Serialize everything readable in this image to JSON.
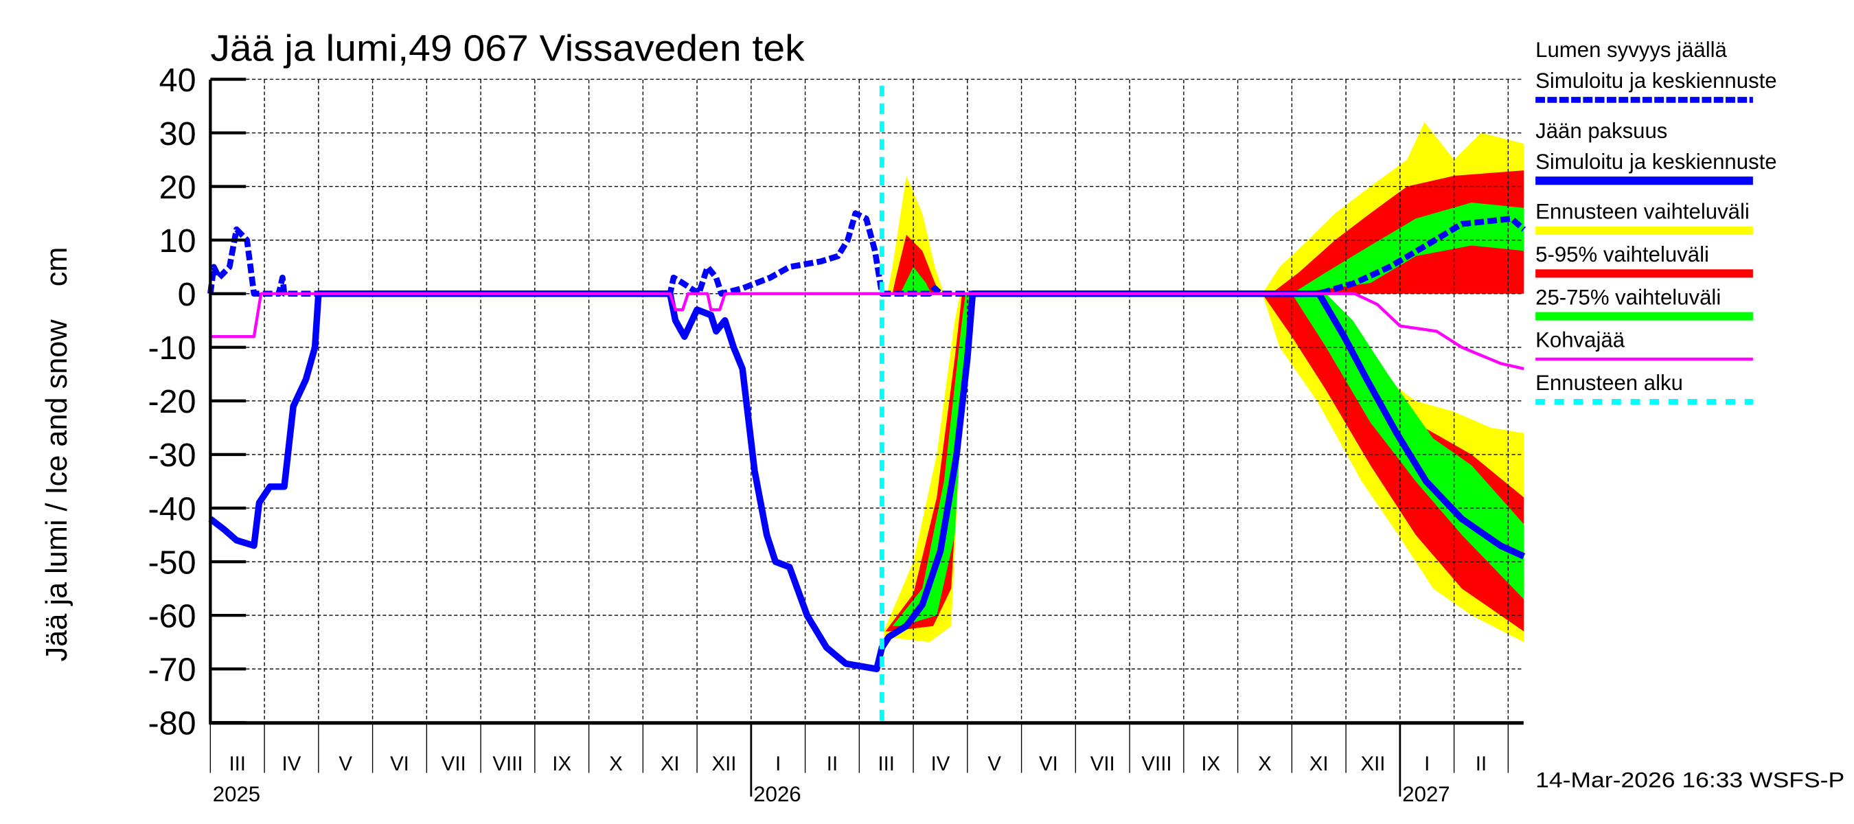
{
  "chart_data": {
    "type": "area",
    "title": "Jää ja lumi,49 067 Vissaveden tek",
    "ylabel": "Jää ja lumi / Ice and snow    cm",
    "ylim": [
      -80,
      40
    ],
    "yticks": [
      40,
      30,
      20,
      10,
      0,
      -10,
      -20,
      -30,
      -40,
      -50,
      -60,
      -70,
      -80
    ],
    "xlim": [
      "2025-03-01",
      "2027-03-10"
    ],
    "grid": true,
    "legend_position": "right",
    "month_labels": [
      "III",
      "IV",
      "V",
      "VI",
      "VII",
      "VIII",
      "IX",
      "X",
      "XI",
      "XII",
      "I",
      "II",
      "III",
      "IV",
      "V",
      "VI",
      "VII",
      "VIII",
      "IX",
      "X",
      "XI",
      "XII",
      "I",
      "II"
    ],
    "year_labels": [
      {
        "year": "2025",
        "month_index": 0
      },
      {
        "year": "2026",
        "month_index": 10
      },
      {
        "year": "2027",
        "month_index": 22
      }
    ],
    "forecast_start": "2026-03-14",
    "timestamp": "14-Mar-2026 16:33 WSFS-P",
    "colors": {
      "snow": "#0000ff",
      "ice": "#0000ff",
      "range": "#ffff00",
      "p5_95": "#ff0000",
      "p25_75": "#00ff00",
      "slush": "#ff00ff",
      "forecast_start": "#00ffff"
    },
    "legend": [
      {
        "label1": "Lumen syvyys jäällä",
        "label2": "Simuloitu ja keskiennuste",
        "color": "#0000ff",
        "style": "dashed"
      },
      {
        "label1": "Jään paksuus",
        "label2": "Simuloitu ja keskiennuste",
        "color": "#0000ff",
        "style": "solid"
      },
      {
        "label1": "Ennusteen vaihteluväli",
        "color": "#ffff00",
        "style": "band"
      },
      {
        "label1": "5-95% vaihteluväli",
        "color": "#ff0000",
        "style": "band"
      },
      {
        "label1": "25-75% vaihteluväli",
        "color": "#00ff00",
        "style": "band"
      },
      {
        "label1": "Kohvajää",
        "color": "#ff00ff",
        "style": "thin"
      },
      {
        "label1": "Ennusteen alku",
        "color": "#00ffff",
        "style": "dotted"
      }
    ],
    "bands": [
      {
        "name": "Ennusteen vaihteluväli",
        "color": "#ffff00",
        "upper": [
          [
            "2026-03-17",
            0
          ],
          [
            "2026-03-20",
            5
          ],
          [
            "2026-03-28",
            22
          ],
          [
            "2026-04-06",
            15
          ],
          [
            "2026-04-13",
            5
          ],
          [
            "2026-04-18",
            0
          ]
        ],
        "lower": [
          [
            "2026-03-17",
            0
          ],
          [
            "2026-04-18",
            0
          ]
        ]
      },
      {
        "name": "5-95% vaihteluväli",
        "color": "#ff0000",
        "upper": [
          [
            "2026-03-20",
            0
          ],
          [
            "2026-03-22",
            3
          ],
          [
            "2026-03-28",
            11
          ],
          [
            "2026-04-06",
            8
          ],
          [
            "2026-04-13",
            2
          ],
          [
            "2026-04-16",
            0
          ]
        ],
        "lower": [
          [
            "2026-03-20",
            0
          ],
          [
            "2026-04-16",
            0
          ]
        ]
      },
      {
        "name": "25-75% vaihteluväli",
        "color": "#00ff00",
        "upper": [
          [
            "2026-03-24",
            0
          ],
          [
            "2026-03-26",
            1
          ],
          [
            "2026-04-01",
            5
          ],
          [
            "2026-04-08",
            2
          ],
          [
            "2026-04-11",
            0
          ]
        ],
        "lower": [
          [
            "2026-03-24",
            0
          ],
          [
            "2026-04-11",
            0
          ]
        ]
      },
      {
        "name": "Ennusteen vaihteluväli",
        "color": "#ffff00",
        "upper": [
          [
            "2026-03-15",
            -63
          ],
          [
            "2026-04-01",
            -50
          ],
          [
            "2026-04-14",
            -30
          ],
          [
            "2026-04-24",
            -5
          ],
          [
            "2026-04-27",
            0
          ]
        ],
        "lower": [
          [
            "2026-03-15",
            -64
          ],
          [
            "2026-04-10",
            -65
          ],
          [
            "2026-04-22",
            -62
          ],
          [
            "2026-04-28",
            -20
          ],
          [
            "2026-05-03",
            0
          ]
        ]
      },
      {
        "name": "5-95% vaihteluväli",
        "color": "#ff0000",
        "upper": [
          [
            "2026-03-16",
            -63
          ],
          [
            "2026-04-01",
            -56
          ],
          [
            "2026-04-14",
            -38
          ],
          [
            "2026-04-24",
            -12
          ],
          [
            "2026-04-28",
            0
          ]
        ],
        "lower": [
          [
            "2026-03-18",
            -63
          ],
          [
            "2026-04-12",
            -62
          ],
          [
            "2026-04-22",
            -55
          ],
          [
            "2026-04-29",
            -15
          ],
          [
            "2026-05-03",
            0
          ]
        ]
      },
      {
        "name": "25-75% vaihteluväli",
        "color": "#00ff00",
        "upper": [
          [
            "2026-03-20",
            -62
          ],
          [
            "2026-04-06",
            -55
          ],
          [
            "2026-04-18",
            -35
          ],
          [
            "2026-04-28",
            -5
          ],
          [
            "2026-04-30",
            0
          ]
        ],
        "lower": [
          [
            "2026-03-25",
            -62
          ],
          [
            "2026-04-14",
            -60
          ],
          [
            "2026-04-24",
            -45
          ],
          [
            "2026-04-30",
            -10
          ],
          [
            "2026-05-02",
            0
          ]
        ]
      },
      {
        "name": "Ennusteen vaihteluväli",
        "color": "#ffff00",
        "upper": [
          [
            "2026-10-15",
            0
          ],
          [
            "2026-10-25",
            5
          ],
          [
            "2026-11-10",
            10
          ],
          [
            "2026-11-25",
            15
          ],
          [
            "2026-12-15",
            20
          ],
          [
            "2027-01-05",
            25
          ],
          [
            "2027-01-15",
            32
          ],
          [
            "2027-02-01",
            25
          ],
          [
            "2027-02-15",
            30
          ],
          [
            "2027-03-10",
            28
          ]
        ],
        "lower": [
          [
            "2026-10-15",
            0
          ],
          [
            "2027-03-10",
            0
          ]
        ]
      },
      {
        "name": "5-95% vaihteluväli",
        "color": "#ff0000",
        "upper": [
          [
            "2026-10-20",
            0
          ],
          [
            "2026-11-05",
            4
          ],
          [
            "2026-11-25",
            10
          ],
          [
            "2026-12-15",
            15
          ],
          [
            "2027-01-05",
            20
          ],
          [
            "2027-02-01",
            22
          ],
          [
            "2027-03-10",
            23
          ]
        ],
        "lower": [
          [
            "2026-10-20",
            0
          ],
          [
            "2027-03-10",
            0
          ]
        ]
      },
      {
        "name": "25-75% vaihteluväli",
        "color": "#00ff00",
        "upper": [
          [
            "2026-11-01",
            0
          ],
          [
            "2026-11-20",
            4
          ],
          [
            "2026-12-15",
            9
          ],
          [
            "2027-01-10",
            14
          ],
          [
            "2027-02-10",
            17
          ],
          [
            "2027-03-10",
            16
          ]
        ],
        "lower": [
          [
            "2026-11-01",
            0
          ],
          [
            "2026-12-15",
            2
          ],
          [
            "2027-01-10",
            7
          ],
          [
            "2027-02-10",
            9
          ],
          [
            "2027-03-10",
            8
          ]
        ]
      },
      {
        "name": "Ennusteen vaihteluväli",
        "color": "#ffff00",
        "upper": [
          [
            "2026-10-15",
            0
          ],
          [
            "2026-11-15",
            0
          ],
          [
            "2026-12-01",
            -5
          ],
          [
            "2026-12-20",
            -15
          ],
          [
            "2027-01-10",
            -20
          ],
          [
            "2027-02-01",
            -22
          ],
          [
            "2027-02-20",
            -25
          ],
          [
            "2027-03-10",
            -26
          ]
        ],
        "lower": [
          [
            "2026-10-15",
            0
          ],
          [
            "2026-10-25",
            -10
          ],
          [
            "2026-11-15",
            -20
          ],
          [
            "2026-12-10",
            -35
          ],
          [
            "2026-12-31",
            -45
          ],
          [
            "2027-01-20",
            -55
          ],
          [
            "2027-02-10",
            -60
          ],
          [
            "2027-03-10",
            -65
          ]
        ]
      },
      {
        "name": "5-95% vaihteluväli",
        "color": "#ff0000",
        "upper": [
          [
            "2026-10-15",
            0
          ],
          [
            "2026-11-20",
            0
          ],
          [
            "2026-12-05",
            -8
          ],
          [
            "2026-12-25",
            -20
          ],
          [
            "2027-01-15",
            -25
          ],
          [
            "2027-02-10",
            -30
          ],
          [
            "2027-03-10",
            -38
          ]
        ],
        "lower": [
          [
            "2026-10-15",
            0
          ],
          [
            "2026-11-01",
            -8
          ],
          [
            "2026-11-20",
            -18
          ],
          [
            "2026-12-15",
            -32
          ],
          [
            "2027-01-10",
            -45
          ],
          [
            "2027-02-05",
            -55
          ],
          [
            "2027-03-10",
            -63
          ]
        ]
      },
      {
        "name": "25-75% vaihteluväli",
        "color": "#00ff00",
        "upper": [
          [
            "2026-11-01",
            0
          ],
          [
            "2026-11-20",
            0
          ],
          [
            "2026-12-05",
            -5
          ],
          [
            "2026-12-25",
            -15
          ],
          [
            "2027-01-20",
            -27
          ],
          [
            "2027-02-10",
            -32
          ],
          [
            "2027-03-10",
            -43
          ]
        ],
        "lower": [
          [
            "2026-11-01",
            0
          ],
          [
            "2026-11-20",
            -10
          ],
          [
            "2026-12-15",
            -24
          ],
          [
            "2027-01-10",
            -35
          ],
          [
            "2027-02-05",
            -45
          ],
          [
            "2027-03-10",
            -57
          ]
        ]
      }
    ],
    "series": [
      {
        "name": "Lumen syvyys jäällä",
        "style": "dashed",
        "color": "#0000ff",
        "points": [
          [
            "2025-03-01",
            0
          ],
          [
            "2025-03-03",
            5
          ],
          [
            "2025-03-06",
            3
          ],
          [
            "2025-03-12",
            5
          ],
          [
            "2025-03-16",
            12
          ],
          [
            "2025-03-22",
            10
          ],
          [
            "2025-03-26",
            0
          ],
          [
            "2025-04-09",
            0
          ],
          [
            "2025-04-11",
            3
          ],
          [
            "2025-04-12",
            0
          ],
          [
            "2025-11-16",
            0
          ],
          [
            "2025-11-18",
            3
          ],
          [
            "2025-11-23",
            2
          ],
          [
            "2025-12-02",
            0
          ],
          [
            "2025-12-07",
            5
          ],
          [
            "2025-12-12",
            3
          ],
          [
            "2025-12-15",
            0
          ],
          [
            "2025-12-27",
            1
          ],
          [
            "2026-01-12",
            3
          ],
          [
            "2026-01-23",
            5
          ],
          [
            "2026-02-09",
            6
          ],
          [
            "2026-02-18",
            7
          ],
          [
            "2026-02-23",
            10
          ],
          [
            "2026-02-27",
            15
          ],
          [
            "2026-03-05",
            14
          ],
          [
            "2026-03-10",
            8
          ],
          [
            "2026-03-14",
            0
          ],
          [
            "2026-04-10",
            0
          ],
          [
            "2026-04-13",
            1
          ],
          [
            "2026-04-16",
            0
          ],
          [
            "2026-11-16",
            0
          ],
          [
            "2026-12-06",
            2
          ],
          [
            "2026-12-26",
            5
          ],
          [
            "2027-01-16",
            9
          ],
          [
            "2027-02-05",
            13
          ],
          [
            "2027-03-03",
            14
          ],
          [
            "2027-03-10",
            12
          ]
        ]
      },
      {
        "name": "Jään paksuus",
        "style": "solid",
        "color": "#0000ff",
        "points": [
          [
            "2025-03-01",
            -42
          ],
          [
            "2025-03-09",
            -44
          ],
          [
            "2025-03-16",
            -46
          ],
          [
            "2025-03-26",
            -47
          ],
          [
            "2025-03-29",
            -39
          ],
          [
            "2025-04-04",
            -36
          ],
          [
            "2025-04-12",
            -36
          ],
          [
            "2025-04-17",
            -21
          ],
          [
            "2025-04-24",
            -16
          ],
          [
            "2025-04-29",
            -10
          ],
          [
            "2025-05-01",
            0
          ],
          [
            "2025-11-16",
            0
          ],
          [
            "2025-11-19",
            -5
          ],
          [
            "2025-11-24",
            -8
          ],
          [
            "2025-12-01",
            -3
          ],
          [
            "2025-12-09",
            -4
          ],
          [
            "2025-12-12",
            -7
          ],
          [
            "2025-12-17",
            -5
          ],
          [
            "2025-12-22",
            -10
          ],
          [
            "2025-12-27",
            -14
          ],
          [
            "2026-01-03",
            -33
          ],
          [
            "2026-01-10",
            -45
          ],
          [
            "2026-01-15",
            -50
          ],
          [
            "2026-01-23",
            -51
          ],
          [
            "2026-02-02",
            -60
          ],
          [
            "2026-02-12",
            -66
          ],
          [
            "2026-02-22",
            -69
          ],
          [
            "2026-03-11",
            -70
          ],
          [
            "2026-03-14",
            -66
          ],
          [
            "2026-03-18",
            -64
          ],
          [
            "2026-03-28",
            -62
          ],
          [
            "2026-04-06",
            -58
          ],
          [
            "2026-04-16",
            -48
          ],
          [
            "2026-04-25",
            -30
          ],
          [
            "2026-05-01",
            -12
          ],
          [
            "2026-05-04",
            0
          ],
          [
            "2026-11-16",
            0
          ],
          [
            "2026-11-30",
            -8
          ],
          [
            "2026-12-13",
            -16
          ],
          [
            "2026-12-30",
            -26
          ],
          [
            "2027-01-16",
            -35
          ],
          [
            "2027-02-05",
            -42
          ],
          [
            "2027-02-25",
            -47
          ],
          [
            "2027-03-10",
            -49
          ]
        ]
      },
      {
        "name": "Kohvajää",
        "style": "thin",
        "color": "#ff00ff",
        "points": [
          [
            "2025-03-01",
            -8
          ],
          [
            "2025-03-26",
            -8
          ],
          [
            "2025-03-30",
            0
          ],
          [
            "2025-11-16",
            0
          ],
          [
            "2025-11-19",
            -3
          ],
          [
            "2025-11-23",
            -3
          ],
          [
            "2025-11-26",
            0
          ],
          [
            "2025-12-07",
            0
          ],
          [
            "2025-12-09",
            -3
          ],
          [
            "2025-12-14",
            -3
          ],
          [
            "2025-12-17",
            0
          ],
          [
            "2026-12-06",
            0
          ],
          [
            "2026-12-19",
            -2
          ],
          [
            "2027-01-01",
            -6
          ],
          [
            "2027-01-22",
            -7
          ],
          [
            "2027-02-05",
            -10
          ],
          [
            "2027-02-25",
            -13
          ],
          [
            "2027-03-10",
            -14
          ]
        ]
      }
    ]
  }
}
